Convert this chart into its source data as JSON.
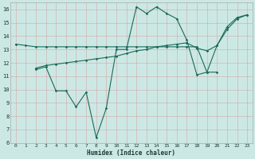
{
  "xlabel": "Humidex (Indice chaleur)",
  "xlim": [
    -0.5,
    23.5
  ],
  "ylim": [
    6,
    16.5
  ],
  "yticks": [
    6,
    7,
    8,
    9,
    10,
    11,
    12,
    13,
    14,
    15,
    16
  ],
  "xticks": [
    0,
    1,
    2,
    3,
    4,
    5,
    6,
    7,
    8,
    9,
    10,
    11,
    12,
    13,
    14,
    15,
    16,
    17,
    18,
    19,
    20,
    21,
    22,
    23
  ],
  "bg_color": "#cce8e4",
  "grid_color": "#b8d8d4",
  "line_color": "#1a6b5a",
  "line1_x": [
    0,
    1,
    2,
    3,
    4,
    5,
    6,
    7,
    8,
    9,
    10,
    11,
    12,
    13,
    14,
    15,
    16,
    17,
    18,
    19,
    20
  ],
  "line1_y": [
    13.4,
    13.3,
    13.2,
    13.2,
    13.2,
    13.2,
    13.2,
    13.2,
    13.2,
    13.2,
    13.2,
    13.2,
    13.2,
    13.2,
    13.2,
    13.2,
    13.2,
    13.2,
    13.2,
    11.3,
    11.3
  ],
  "line2_x": [
    2,
    3,
    4,
    5,
    6,
    7,
    8,
    9,
    10,
    11,
    12,
    13,
    14,
    15,
    16,
    17,
    18,
    19,
    20,
    21,
    22,
    23
  ],
  "line2_y": [
    11.5,
    11.7,
    9.9,
    9.9,
    8.7,
    9.8,
    6.4,
    8.6,
    13.0,
    13.0,
    16.2,
    15.7,
    16.2,
    15.7,
    15.3,
    13.7,
    11.1,
    11.3,
    13.3,
    14.7,
    15.4,
    15.6
  ],
  "line3_x": [
    2,
    3,
    4,
    5,
    6,
    7,
    8,
    9,
    10,
    11,
    12,
    13,
    14,
    15,
    16,
    17,
    18,
    19,
    20,
    21,
    22,
    23
  ],
  "line3_y": [
    11.6,
    11.8,
    11.9,
    12.0,
    12.1,
    12.2,
    12.3,
    12.4,
    12.5,
    12.7,
    12.9,
    13.0,
    13.2,
    13.3,
    13.4,
    13.5,
    13.1,
    12.9,
    13.3,
    14.5,
    15.3,
    15.6
  ]
}
